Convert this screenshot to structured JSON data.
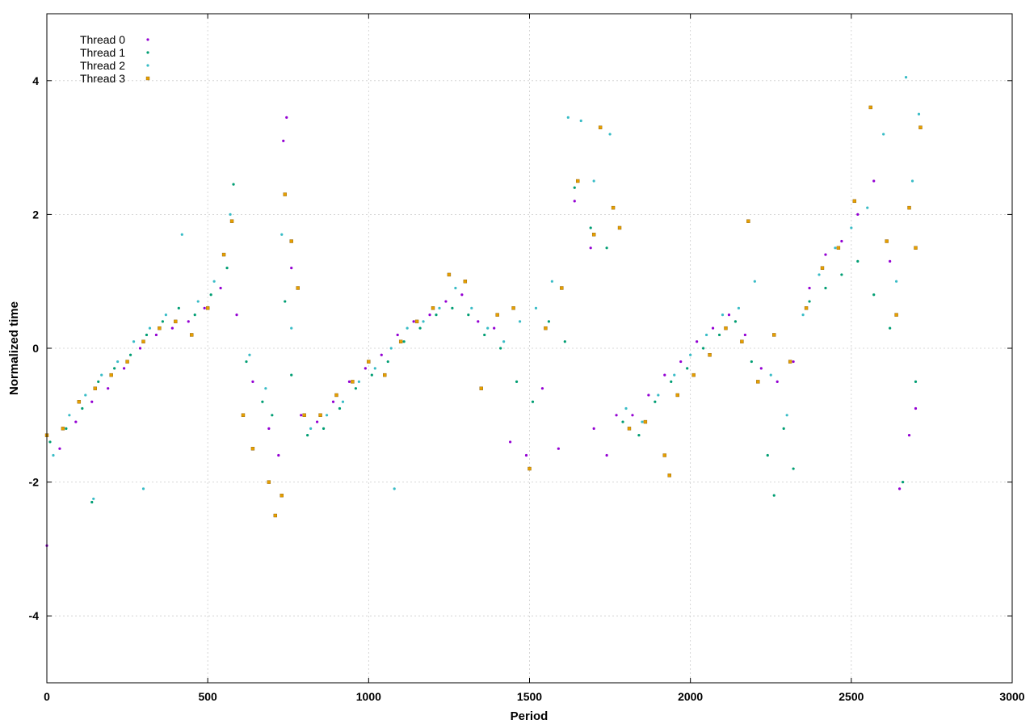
{
  "chart_data": {
    "type": "scatter",
    "title": "",
    "xlabel": "Period",
    "ylabel": "Normalized time",
    "xlim": [
      0,
      3000
    ],
    "ylim": [
      -5,
      5
    ],
    "x_ticks": [
      0,
      500,
      1000,
      1500,
      2000,
      2500,
      3000
    ],
    "y_ticks": [
      -4,
      -2,
      0,
      2,
      4
    ],
    "x_tick_labels": [
      "0",
      "500",
      "1000",
      "1500",
      "2000",
      "2500",
      "3000"
    ],
    "y_tick_labels": [
      "-4",
      "-2",
      "0",
      "2",
      "4"
    ],
    "grid": true,
    "legend_position": "top-left",
    "series": [
      {
        "name": "Thread 0",
        "color": "#9400d3",
        "marker": "dot",
        "points": [
          [
            0,
            -2.95
          ],
          [
            40,
            -1.5
          ],
          [
            90,
            -1.1
          ],
          [
            140,
            -0.8
          ],
          [
            190,
            -0.6
          ],
          [
            240,
            -0.3
          ],
          [
            290,
            0.0
          ],
          [
            340,
            0.2
          ],
          [
            390,
            0.3
          ],
          [
            440,
            0.4
          ],
          [
            490,
            0.6
          ],
          [
            540,
            0.9
          ],
          [
            590,
            0.5
          ],
          [
            640,
            -0.5
          ],
          [
            690,
            -1.2
          ],
          [
            720,
            -1.6
          ],
          [
            735,
            3.1
          ],
          [
            745,
            3.45
          ],
          [
            760,
            1.2
          ],
          [
            790,
            -1.0
          ],
          [
            840,
            -1.1
          ],
          [
            890,
            -0.8
          ],
          [
            940,
            -0.5
          ],
          [
            990,
            -0.3
          ],
          [
            1040,
            -0.1
          ],
          [
            1090,
            0.2
          ],
          [
            1140,
            0.4
          ],
          [
            1190,
            0.5
          ],
          [
            1240,
            0.7
          ],
          [
            1290,
            0.8
          ],
          [
            1340,
            0.4
          ],
          [
            1390,
            0.3
          ],
          [
            1440,
            -1.4
          ],
          [
            1490,
            -1.6
          ],
          [
            1540,
            -0.6
          ],
          [
            1590,
            -1.5
          ],
          [
            1640,
            2.2
          ],
          [
            1690,
            1.5
          ],
          [
            1700,
            -1.2
          ],
          [
            1740,
            -1.6
          ],
          [
            1770,
            -1.0
          ],
          [
            1820,
            -1.0
          ],
          [
            1870,
            -0.7
          ],
          [
            1920,
            -0.4
          ],
          [
            1970,
            -0.2
          ],
          [
            2020,
            0.1
          ],
          [
            2070,
            0.3
          ],
          [
            2120,
            0.5
          ],
          [
            2170,
            0.2
          ],
          [
            2220,
            -0.3
          ],
          [
            2270,
            -0.5
          ],
          [
            2320,
            -0.2
          ],
          [
            2370,
            0.9
          ],
          [
            2420,
            1.4
          ],
          [
            2470,
            1.6
          ],
          [
            2520,
            2.0
          ],
          [
            2570,
            2.5
          ],
          [
            2620,
            1.3
          ],
          [
            2650,
            -2.1
          ],
          [
            2680,
            -1.3
          ],
          [
            2700,
            -0.9
          ]
        ]
      },
      {
        "name": "Thread 1",
        "color": "#009e73",
        "marker": "dot",
        "points": [
          [
            10,
            -1.4
          ],
          [
            60,
            -1.2
          ],
          [
            110,
            -0.9
          ],
          [
            140,
            -2.3
          ],
          [
            160,
            -0.5
          ],
          [
            210,
            -0.3
          ],
          [
            260,
            -0.1
          ],
          [
            310,
            0.2
          ],
          [
            360,
            0.4
          ],
          [
            410,
            0.6
          ],
          [
            460,
            0.5
          ],
          [
            510,
            0.8
          ],
          [
            560,
            1.2
          ],
          [
            580,
            2.45
          ],
          [
            620,
            -0.2
          ],
          [
            670,
            -0.8
          ],
          [
            700,
            -1.0
          ],
          [
            740,
            0.7
          ],
          [
            760,
            -0.4
          ],
          [
            810,
            -1.3
          ],
          [
            860,
            -1.2
          ],
          [
            910,
            -0.9
          ],
          [
            960,
            -0.6
          ],
          [
            1010,
            -0.4
          ],
          [
            1060,
            -0.2
          ],
          [
            1110,
            0.1
          ],
          [
            1160,
            0.3
          ],
          [
            1210,
            0.5
          ],
          [
            1260,
            0.6
          ],
          [
            1310,
            0.5
          ],
          [
            1360,
            0.2
          ],
          [
            1410,
            0.0
          ],
          [
            1460,
            -0.5
          ],
          [
            1510,
            -0.8
          ],
          [
            1560,
            0.4
          ],
          [
            1610,
            0.1
          ],
          [
            1640,
            2.4
          ],
          [
            1690,
            1.8
          ],
          [
            1740,
            1.5
          ],
          [
            1790,
            -1.1
          ],
          [
            1840,
            -1.3
          ],
          [
            1890,
            -0.8
          ],
          [
            1940,
            -0.5
          ],
          [
            1990,
            -0.3
          ],
          [
            2040,
            0.0
          ],
          [
            2090,
            0.2
          ],
          [
            2140,
            0.4
          ],
          [
            2190,
            -0.2
          ],
          [
            2240,
            -1.6
          ],
          [
            2260,
            -2.2
          ],
          [
            2290,
            -1.2
          ],
          [
            2320,
            -1.8
          ],
          [
            2370,
            0.7
          ],
          [
            2420,
            0.9
          ],
          [
            2470,
            1.1
          ],
          [
            2520,
            1.3
          ],
          [
            2570,
            0.8
          ],
          [
            2620,
            0.3
          ],
          [
            2660,
            -2.0
          ],
          [
            2700,
            -0.5
          ]
        ]
      },
      {
        "name": "Thread 2",
        "color": "#38bcc6",
        "marker": "dot",
        "points": [
          [
            20,
            -1.6
          ],
          [
            70,
            -1.0
          ],
          [
            120,
            -0.7
          ],
          [
            145,
            -2.25
          ],
          [
            170,
            -0.4
          ],
          [
            220,
            -0.2
          ],
          [
            270,
            0.1
          ],
          [
            300,
            -2.1
          ],
          [
            320,
            0.3
          ],
          [
            370,
            0.5
          ],
          [
            420,
            1.7
          ],
          [
            470,
            0.7
          ],
          [
            520,
            1.0
          ],
          [
            570,
            2.0
          ],
          [
            630,
            -0.1
          ],
          [
            680,
            -0.6
          ],
          [
            730,
            1.7
          ],
          [
            760,
            0.3
          ],
          [
            820,
            -1.2
          ],
          [
            870,
            -1.0
          ],
          [
            920,
            -0.8
          ],
          [
            970,
            -0.5
          ],
          [
            1020,
            -0.3
          ],
          [
            1080,
            -2.1
          ],
          [
            1070,
            0.0
          ],
          [
            1120,
            0.3
          ],
          [
            1170,
            0.4
          ],
          [
            1220,
            0.6
          ],
          [
            1270,
            0.9
          ],
          [
            1320,
            0.6
          ],
          [
            1370,
            0.3
          ],
          [
            1420,
            0.1
          ],
          [
            1470,
            0.4
          ],
          [
            1520,
            0.6
          ],
          [
            1570,
            1.0
          ],
          [
            1620,
            3.45
          ],
          [
            1660,
            3.4
          ],
          [
            1700,
            2.5
          ],
          [
            1750,
            3.2
          ],
          [
            1800,
            -0.9
          ],
          [
            1850,
            -1.1
          ],
          [
            1900,
            -0.7
          ],
          [
            1950,
            -0.4
          ],
          [
            2000,
            -0.1
          ],
          [
            2050,
            0.2
          ],
          [
            2100,
            0.5
          ],
          [
            2150,
            0.6
          ],
          [
            2200,
            1.0
          ],
          [
            2250,
            -0.4
          ],
          [
            2300,
            -1.0
          ],
          [
            2350,
            0.5
          ],
          [
            2400,
            1.1
          ],
          [
            2450,
            1.5
          ],
          [
            2500,
            1.8
          ],
          [
            2550,
            2.1
          ],
          [
            2600,
            3.2
          ],
          [
            2640,
            1.0
          ],
          [
            2670,
            4.05
          ],
          [
            2690,
            2.5
          ],
          [
            2710,
            3.5
          ]
        ]
      },
      {
        "name": "Thread 3",
        "color": "#e69f00",
        "marker": "square",
        "points": [
          [
            0,
            -1.3
          ],
          [
            50,
            -1.2
          ],
          [
            100,
            -0.8
          ],
          [
            150,
            -0.6
          ],
          [
            200,
            -0.4
          ],
          [
            250,
            -0.2
          ],
          [
            300,
            0.1
          ],
          [
            350,
            0.3
          ],
          [
            400,
            0.4
          ],
          [
            450,
            0.2
          ],
          [
            500,
            0.6
          ],
          [
            550,
            1.4
          ],
          [
            575,
            1.9
          ],
          [
            610,
            -1.0
          ],
          [
            640,
            -1.5
          ],
          [
            690,
            -2.0
          ],
          [
            710,
            -2.5
          ],
          [
            730,
            -2.2
          ],
          [
            740,
            2.3
          ],
          [
            760,
            1.6
          ],
          [
            780,
            0.9
          ],
          [
            800,
            -1.0
          ],
          [
            850,
            -1.0
          ],
          [
            900,
            -0.7
          ],
          [
            950,
            -0.5
          ],
          [
            1000,
            -0.2
          ],
          [
            1050,
            -0.4
          ],
          [
            1100,
            0.1
          ],
          [
            1150,
            0.4
          ],
          [
            1200,
            0.6
          ],
          [
            1250,
            1.1
          ],
          [
            1300,
            1.0
          ],
          [
            1350,
            -0.6
          ],
          [
            1400,
            0.5
          ],
          [
            1450,
            0.6
          ],
          [
            1500,
            -1.8
          ],
          [
            1550,
            0.3
          ],
          [
            1600,
            0.9
          ],
          [
            1650,
            2.5
          ],
          [
            1700,
            1.7
          ],
          [
            1720,
            3.3
          ],
          [
            1760,
            2.1
          ],
          [
            1780,
            1.8
          ],
          [
            1810,
            -1.2
          ],
          [
            1860,
            -1.1
          ],
          [
            1920,
            -1.6
          ],
          [
            1935,
            -1.9
          ],
          [
            1960,
            -0.7
          ],
          [
            2010,
            -0.4
          ],
          [
            2060,
            -0.1
          ],
          [
            2110,
            0.3
          ],
          [
            2160,
            0.1
          ],
          [
            2180,
            1.9
          ],
          [
            2210,
            -0.5
          ],
          [
            2260,
            0.2
          ],
          [
            2310,
            -0.2
          ],
          [
            2360,
            0.6
          ],
          [
            2410,
            1.2
          ],
          [
            2460,
            1.5
          ],
          [
            2510,
            2.2
          ],
          [
            2560,
            3.6
          ],
          [
            2610,
            1.6
          ],
          [
            2640,
            0.5
          ],
          [
            2680,
            2.1
          ],
          [
            2700,
            1.5
          ],
          [
            2715,
            3.3
          ]
        ]
      }
    ]
  },
  "legend": {
    "items": [
      {
        "label": "Thread 0"
      },
      {
        "label": "Thread 1"
      },
      {
        "label": "Thread 2"
      },
      {
        "label": "Thread 3"
      }
    ]
  }
}
